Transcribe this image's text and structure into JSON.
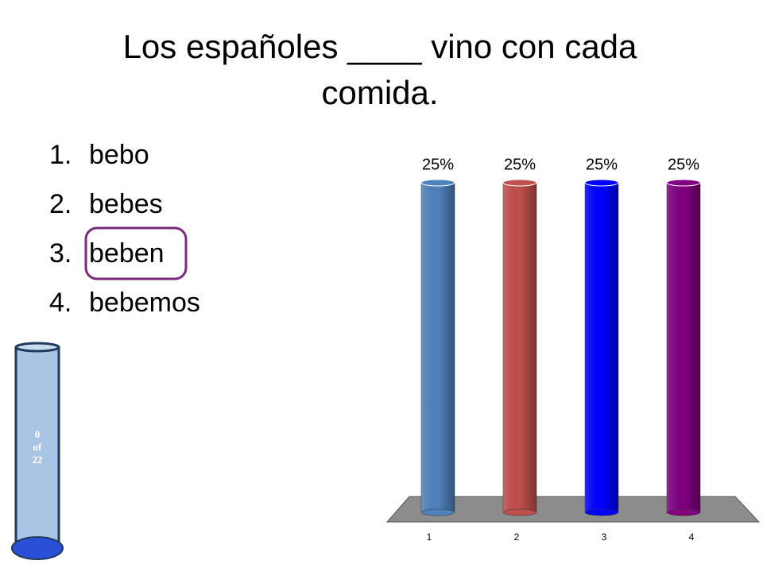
{
  "slide": {
    "title": "Los españoles ____ vino con cada comida.",
    "options": [
      {
        "number": "1.",
        "text": "bebo"
      },
      {
        "number": "2.",
        "text": "bebes"
      },
      {
        "number": "3.",
        "text": "beben"
      },
      {
        "number": "4.",
        "text": "bebemos"
      }
    ],
    "counter": [
      "0",
      "of",
      "22"
    ]
  },
  "chart_data": {
    "type": "bar",
    "categories": [
      "1",
      "2",
      "3",
      "4"
    ],
    "values": [
      25,
      25,
      25,
      25
    ],
    "value_labels": [
      "25%",
      "25%",
      "25%",
      "25%"
    ],
    "colors": [
      "#4f81bd",
      "#c0504d",
      "#0000ff",
      "#800080"
    ]
  }
}
